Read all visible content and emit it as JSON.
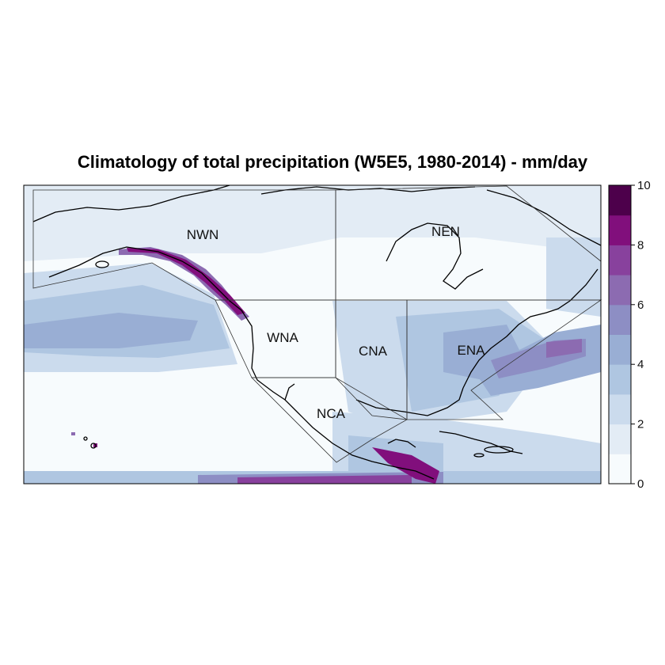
{
  "title": "Climatology of total precipitation (W5E5, 1980-2014) - mm/day",
  "regions": [
    {
      "code": "NWN"
    },
    {
      "code": "NEN"
    },
    {
      "code": "WNA"
    },
    {
      "code": "CNA"
    },
    {
      "code": "ENA"
    },
    {
      "code": "NCA"
    }
  ],
  "colorbar": {
    "unit": "mm/day",
    "ticks": [
      "0",
      "2",
      "4",
      "6",
      "8",
      "10"
    ],
    "bins": [
      {
        "from": 0,
        "to": 1,
        "color": "#f7fbfd"
      },
      {
        "from": 1,
        "to": 2,
        "color": "#e3ecf5"
      },
      {
        "from": 2,
        "to": 3,
        "color": "#cbdbed"
      },
      {
        "from": 3,
        "to": 4,
        "color": "#afc6e1"
      },
      {
        "from": 4,
        "to": 5,
        "color": "#99aed4"
      },
      {
        "from": 5,
        "to": 6,
        "color": "#8d8ec4"
      },
      {
        "from": 6,
        "to": 7,
        "color": "#8c6bb1"
      },
      {
        "from": 7,
        "to": 8,
        "color": "#88419d"
      },
      {
        "from": 8,
        "to": 9,
        "color": "#810f7c"
      },
      {
        "from": 9,
        "to": 10,
        "color": "#4d004b"
      }
    ]
  }
}
